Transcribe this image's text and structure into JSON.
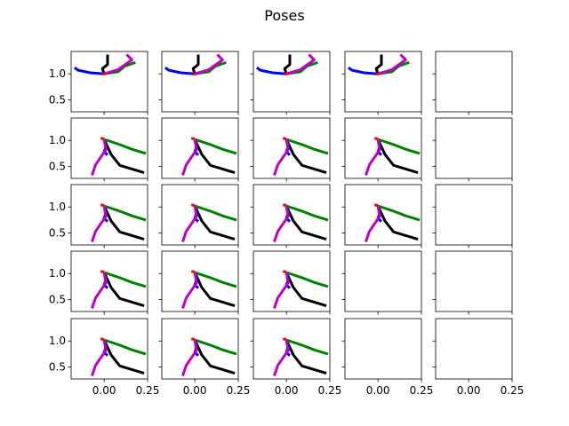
{
  "chart_data": {
    "type": "line",
    "title": "Poses",
    "grid_shape": [
      5,
      5
    ],
    "sharex": true,
    "sharey": true,
    "xlim": [
      -0.19,
      0.25
    ],
    "ylim": [
      0.27,
      1.43
    ],
    "xticks": [
      0.0,
      0.25
    ],
    "xtick_labels": [
      "0.00",
      "0.25"
    ],
    "yticks": [
      0.5,
      1.0
    ],
    "ytick_labels": [
      "0.5",
      "1.0"
    ],
    "series_colors": {
      "black": "#000000",
      "blue": "#0000ff",
      "green": "#008000",
      "magenta": "#bf00bf",
      "red": "#ff0000"
    },
    "poses": {
      "A": {
        "black": [
          [
            0.0,
            1.0
          ],
          [
            -0.01,
            1.1
          ],
          [
            0.02,
            1.18
          ],
          [
            0.02,
            1.37
          ]
        ],
        "blue": [
          [
            0.0,
            1.0
          ],
          [
            -0.08,
            1.02
          ],
          [
            -0.15,
            1.07
          ],
          [
            -0.17,
            1.12
          ]
        ],
        "green": [
          [
            0.0,
            1.0
          ],
          [
            0.08,
            1.04
          ],
          [
            0.12,
            1.15
          ],
          [
            0.18,
            1.22
          ]
        ],
        "magenta": [
          [
            0.0,
            1.0
          ],
          [
            0.08,
            1.08
          ],
          [
            0.16,
            1.27
          ],
          [
            0.13,
            1.37
          ]
        ],
        "red": [
          [
            -0.01,
            1.0
          ],
          [
            0.01,
            1.0
          ]
        ]
      },
      "B": {
        "black": [
          [
            0.0,
            1.02
          ],
          [
            0.04,
            0.73
          ],
          [
            0.09,
            0.52
          ],
          [
            0.23,
            0.38
          ]
        ],
        "blue": [
          [
            0.0,
            1.02
          ],
          [
            0.01,
            0.88
          ],
          [
            0.0,
            0.78
          ],
          [
            0.02,
            0.72
          ]
        ],
        "green": [
          [
            0.0,
            1.02
          ],
          [
            0.09,
            0.92
          ],
          [
            0.16,
            0.83
          ],
          [
            0.24,
            0.75
          ]
        ],
        "magenta": [
          [
            0.0,
            1.02
          ],
          [
            0.01,
            0.82
          ],
          [
            -0.05,
            0.53
          ],
          [
            -0.07,
            0.33
          ]
        ],
        "red": [
          [
            -0.02,
            1.04
          ],
          [
            0.0,
            1.03
          ]
        ]
      }
    },
    "panel_pose_grid": [
      [
        "A",
        "A",
        "A",
        "A",
        null
      ],
      [
        "B",
        "B",
        "B",
        "B",
        null
      ],
      [
        "B",
        "B",
        "B",
        "B",
        null
      ],
      [
        "B",
        "B",
        "B",
        null,
        null
      ],
      [
        "B",
        "B",
        "B",
        null,
        null
      ]
    ]
  }
}
